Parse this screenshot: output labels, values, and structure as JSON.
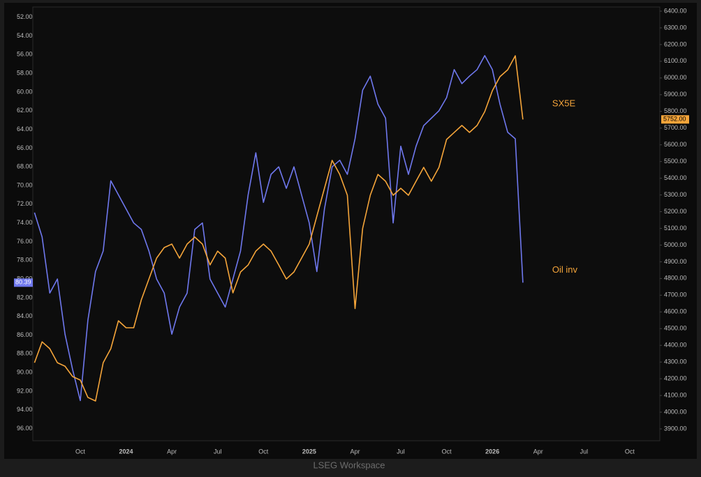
{
  "chart_data": {
    "type": "line",
    "categories": [
      null,
      null,
      null,
      null,
      null,
      null,
      "Oct",
      null,
      null,
      null,
      null,
      null,
      "2024",
      null,
      null,
      null,
      null,
      null,
      "Apr",
      null,
      null,
      null,
      null,
      null,
      "Jul",
      null,
      null,
      null,
      null,
      null,
      "Oct",
      null,
      null,
      null,
      null,
      null,
      "2025",
      null,
      null,
      null,
      null,
      null,
      "Apr",
      null,
      null,
      null,
      null,
      null,
      "Jul",
      null,
      null,
      null,
      null,
      null,
      "Oct",
      null,
      null,
      null,
      null,
      null,
      "2026",
      null,
      null,
      null,
      null,
      null,
      "Apr",
      null,
      null,
      null,
      null,
      null,
      "Jul",
      null,
      null,
      null,
      null,
      null,
      "Oct",
      null,
      null,
      null
    ],
    "series": [
      {
        "name": "Oil inv",
        "color": "#6f78ee",
        "last_value_label": "80.39",
        "values": [
          72.9,
          75.5,
          81.5,
          80,
          85.9,
          89.7,
          93,
          84.4,
          79.2,
          77,
          69.5,
          71,
          72.5,
          74,
          74.7,
          77,
          80,
          81.5,
          85.9,
          83,
          81.5,
          74.7,
          74,
          80,
          81.5,
          83,
          80,
          77,
          71,
          66.5,
          71.8,
          68.8,
          68,
          70.3,
          68,
          71,
          74,
          79.2,
          72.5,
          68,
          67.3,
          68.8,
          65,
          59.8,
          58.3,
          61.3,
          62.8,
          74,
          65.8,
          68.8,
          65.8,
          63.6,
          62.8,
          62,
          60.6,
          57.6,
          59.1,
          58.3,
          57.6,
          56.1,
          57.6,
          61.3,
          64.3,
          65,
          80.39,
          null,
          null,
          null,
          null,
          null,
          null,
          null,
          null,
          null,
          null,
          null,
          null,
          null,
          null,
          null,
          null,
          null
        ]
      },
      {
        "name": "SX5E",
        "color": "#f5a53a",
        "axis": "y2",
        "last_value_label": "5752.00",
        "values": [
          4296,
          4421,
          4380,
          4296,
          4275,
          4213,
          4192,
          4088,
          4067,
          4296,
          4380,
          4547,
          4505,
          4505,
          4672,
          4797,
          4922,
          4985,
          5006,
          4922,
          5006,
          5048,
          5006,
          4881,
          4964,
          4922,
          4714,
          4839,
          4881,
          4964,
          5006,
          4964,
          4881,
          4797,
          4839,
          4922,
          5006,
          5173,
          5340,
          5507,
          5423,
          5298,
          4620,
          5100,
          5298,
          5423,
          5382,
          5298,
          5340,
          5298,
          5382,
          5465,
          5382,
          5465,
          5632,
          5674,
          5716,
          5674,
          5716,
          5799,
          5924,
          6008,
          6049,
          6133,
          5752,
          null,
          null,
          null,
          null,
          null,
          null,
          null,
          null,
          null,
          null,
          null,
          null,
          null,
          null,
          null,
          null,
          null
        ]
      }
    ],
    "ylim": [
      97.3,
      50.9
    ],
    "yticks": [
      {
        "value": 52,
        "label": "52.00"
      },
      {
        "value": 54,
        "label": "54.00"
      },
      {
        "value": 56,
        "label": "56.00"
      },
      {
        "value": 58,
        "label": "58.00"
      },
      {
        "value": 60,
        "label": "60.00"
      },
      {
        "value": 62,
        "label": "62.00"
      },
      {
        "value": 64,
        "label": "64.00"
      },
      {
        "value": 66,
        "label": "66.00"
      },
      {
        "value": 68,
        "label": "68.00"
      },
      {
        "value": 70,
        "label": "70.00"
      },
      {
        "value": 72,
        "label": "72.00"
      },
      {
        "value": 74,
        "label": "74.00"
      },
      {
        "value": 76,
        "label": "76.00"
      },
      {
        "value": 78,
        "label": "78.00"
      },
      {
        "value": 80,
        "label": "80.00"
      },
      {
        "value": 82,
        "label": "82.00"
      },
      {
        "value": 84,
        "label": "84.00"
      },
      {
        "value": 86,
        "label": "86.00"
      },
      {
        "value": 88,
        "label": "88.00"
      },
      {
        "value": 90,
        "label": "90.00"
      },
      {
        "value": 92,
        "label": "92.00"
      },
      {
        "value": 94,
        "label": "94.00"
      },
      {
        "value": 96,
        "label": "96.00"
      }
    ],
    "y2lim": [
      3829,
      6425
    ],
    "y2ticks": [
      {
        "value": 3900,
        "label": "3900.00"
      },
      {
        "value": 4000,
        "label": "4000.00"
      },
      {
        "value": 4100,
        "label": "4100.00"
      },
      {
        "value": 4200,
        "label": "4200.00"
      },
      {
        "value": 4300,
        "label": "4300.00"
      },
      {
        "value": 4400,
        "label": "4400.00"
      },
      {
        "value": 4500,
        "label": "4500.00"
      },
      {
        "value": 4600,
        "label": "4600.00"
      },
      {
        "value": 4700,
        "label": "4700.00"
      },
      {
        "value": 4800,
        "label": "4800.00"
      },
      {
        "value": 4900,
        "label": "4900.00"
      },
      {
        "value": 5000,
        "label": "5000.00"
      },
      {
        "value": 5100,
        "label": "5100.00"
      },
      {
        "value": 5200,
        "label": "5200.00"
      },
      {
        "value": 5300,
        "label": "5300.00"
      },
      {
        "value": 5400,
        "label": "5400.00"
      },
      {
        "value": 5500,
        "label": "5500.00"
      },
      {
        "value": 5600,
        "label": "5600.00"
      },
      {
        "value": 5700,
        "label": "5700.00"
      },
      {
        "value": 5800,
        "label": "5800.00"
      },
      {
        "value": 5900,
        "label": "5900.00"
      },
      {
        "value": 6000,
        "label": "6000.00"
      },
      {
        "value": 6100,
        "label": "6100.00"
      },
      {
        "value": 6200,
        "label": "6200.00"
      },
      {
        "value": 6300,
        "label": "6300.00"
      },
      {
        "value": 6400,
        "label": "6400.00"
      }
    ],
    "grid": false,
    "annotations": [
      {
        "text": "SX5E",
        "series": 1
      },
      {
        "text": "Oil inv",
        "series": 0
      }
    ],
    "footer": "LSEG Workspace"
  }
}
